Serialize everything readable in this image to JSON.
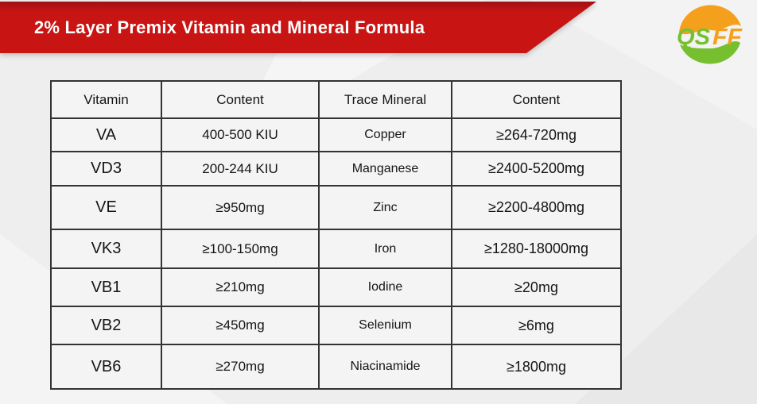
{
  "banner": {
    "title": "2% Layer Premix Vitamin and Mineral Formula",
    "background_color": "#c91414"
  },
  "logo": {
    "name": "QSFF",
    "text_green": "QS",
    "text_orange": "FF",
    "green_color": "#76c02f",
    "orange_color": "#f5a01d"
  },
  "table": {
    "headers": [
      "Vitamin",
      "Content",
      "Trace Mineral",
      "Content"
    ],
    "rows": [
      [
        "VA",
        "400-500 KIU",
        "Copper",
        "≥264-720mg"
      ],
      [
        "VD3",
        "200-244 KIU",
        "Manganese",
        "≥2400-5200mg"
      ],
      [
        "VE",
        "≥950mg",
        "Zinc",
        "≥2200-4800mg"
      ],
      [
        "VK3",
        "≥100-150mg",
        "Iron",
        "≥1280-18000mg"
      ],
      [
        "VB1",
        "≥210mg",
        "Iodine",
        "≥20mg"
      ],
      [
        "VB2",
        "≥450mg",
        "Selenium",
        "≥6mg"
      ],
      [
        "VB6",
        "≥270mg",
        "Niacinamide",
        "≥1800mg"
      ]
    ]
  }
}
